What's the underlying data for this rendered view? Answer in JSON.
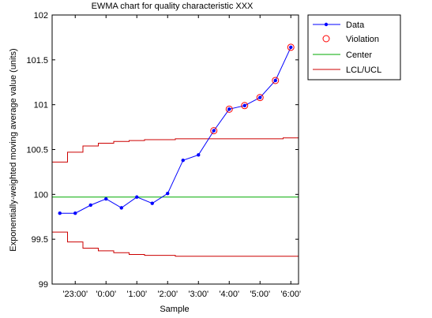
{
  "chart_data": {
    "type": "line",
    "title": "EWMA chart for quality characteristic XXX",
    "xlabel": "Sample",
    "ylabel": "Exponentially-weighted moving average value (units)",
    "ylim": [
      99,
      102
    ],
    "yticks": [
      "99",
      "99.5",
      "100",
      "100.5",
      "101",
      "101.5",
      "102"
    ],
    "ytick_values": [
      99,
      99.5,
      100,
      100.5,
      101,
      101.5,
      102
    ],
    "xlim": [
      0.5,
      16.5
    ],
    "xtick_positions": [
      2,
      4,
      6,
      8,
      10,
      12,
      14,
      16
    ],
    "xticks": [
      "'23:00'",
      "'0:00'",
      "'1:00'",
      "'2:00'",
      "'3:00'",
      "'4:00'",
      "'5:00'",
      "'6:00'"
    ],
    "x": [
      1,
      2,
      3,
      4,
      5,
      6,
      7,
      8,
      9,
      10,
      11,
      12,
      13,
      14,
      15,
      16
    ],
    "series": [
      {
        "name": "Data",
        "color": "#0000ff",
        "values": [
          99.79,
          99.79,
          99.88,
          99.95,
          99.85,
          99.97,
          99.9,
          100.01,
          100.38,
          100.44,
          100.71,
          100.95,
          100.99,
          101.08,
          101.27,
          101.64
        ]
      },
      {
        "name": "Violation",
        "color": "#ff0000",
        "marker": "circle",
        "x": [
          11,
          12,
          13,
          14,
          15,
          16
        ],
        "values": [
          100.71,
          100.95,
          100.99,
          101.08,
          101.27,
          101.64
        ]
      },
      {
        "name": "Center",
        "color": "#00aa00",
        "value": 99.97
      },
      {
        "name": "LCL/UCL",
        "color": "#cc0000",
        "ucl": [
          100.36,
          100.47,
          100.54,
          100.57,
          100.59,
          100.6,
          100.61,
          100.61,
          100.62,
          100.62,
          100.62,
          100.62,
          100.62,
          100.62,
          100.62,
          100.63
        ],
        "lcl": [
          99.58,
          99.47,
          99.4,
          99.37,
          99.35,
          99.33,
          99.32,
          99.32,
          99.31,
          99.31,
          99.31,
          99.31,
          99.31,
          99.31,
          99.31,
          99.31
        ]
      }
    ],
    "legend": {
      "placement": "outside-right",
      "entries": [
        "Data",
        "Violation",
        "Center",
        "LCL/UCL"
      ]
    },
    "grid": false
  }
}
